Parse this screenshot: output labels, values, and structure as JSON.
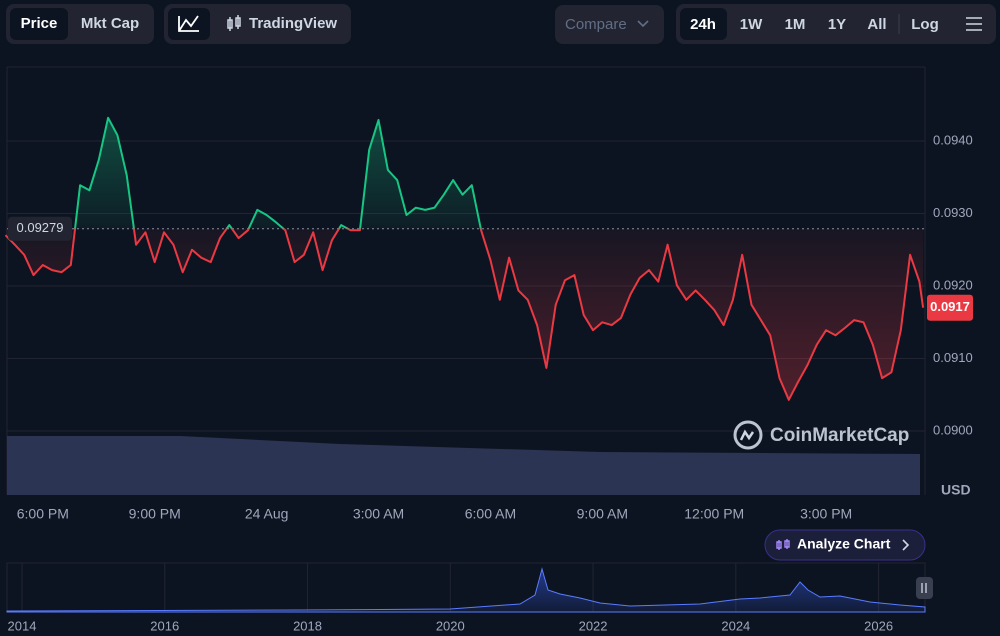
{
  "toolbar": {
    "views": [
      "Price",
      "Mkt Cap"
    ],
    "tradingview": "TradingView",
    "compare": "Compare",
    "ranges": [
      "24h",
      "1W",
      "1M",
      "1Y",
      "All"
    ],
    "log": "Log"
  },
  "chart_data": {
    "type": "line",
    "x": [
      17.0,
      17.25,
      17.5,
      17.75,
      18.0,
      18.25,
      18.5,
      18.75,
      19.0,
      19.25,
      19.5,
      19.75,
      20.0,
      20.25,
      20.5,
      20.75,
      21.0,
      21.25,
      21.5,
      21.75,
      22.0,
      22.25,
      22.5,
      22.75,
      23.0,
      23.25,
      23.5,
      23.75,
      24.0,
      24.25,
      24.5,
      24.75,
      25.0,
      25.25,
      25.5,
      25.75,
      26.0,
      26.25,
      26.5,
      26.75,
      27.0,
      27.25,
      27.5,
      27.75,
      28.0,
      28.25,
      28.5,
      28.75,
      29.0,
      29.25,
      29.5,
      29.75,
      30.0,
      30.25,
      30.5,
      30.75,
      31.0,
      31.25,
      31.5,
      31.75,
      32.0,
      32.25,
      32.5,
      32.75,
      33.0,
      33.25,
      33.5,
      33.75,
      34.0,
      34.25,
      34.5,
      34.75,
      35.0,
      35.25,
      35.5,
      35.75,
      36.0,
      36.25,
      36.5,
      36.75,
      37.0,
      37.25,
      37.5,
      37.75,
      38.0,
      38.25,
      38.5,
      38.75,
      39.0,
      39.25,
      39.5,
      39.75,
      40.0,
      40.25,
      40.5,
      40.75,
      41.0,
      41.25,
      41.5,
      41.6
    ],
    "values": [
      0.0927,
      0.09257,
      0.09243,
      0.09215,
      0.09229,
      0.09222,
      0.09219,
      0.09229,
      0.09339,
      0.09332,
      0.09374,
      0.09432,
      0.09408,
      0.09353,
      0.09257,
      0.09274,
      0.09233,
      0.09274,
      0.09257,
      0.09219,
      0.0925,
      0.09239,
      0.09233,
      0.09266,
      0.09284,
      0.09266,
      0.09277,
      0.09305,
      0.09298,
      0.09288,
      0.09277,
      0.09233,
      0.09243,
      0.09274,
      0.09222,
      0.09263,
      0.09284,
      0.09277,
      0.09277,
      0.09388,
      0.09429,
      0.0936,
      0.09346,
      0.09298,
      0.09308,
      0.09305,
      0.09308,
      0.09326,
      0.09346,
      0.09326,
      0.09339,
      0.09277,
      0.09236,
      0.09181,
      0.09239,
      0.09194,
      0.09181,
      0.09146,
      0.09087,
      0.09174,
      0.09208,
      0.09215,
      0.0916,
      0.09139,
      0.0915,
      0.09146,
      0.09156,
      0.09188,
      0.09211,
      0.09222,
      0.09206,
      0.09257,
      0.09201,
      0.09181,
      0.09194,
      0.09181,
      0.09167,
      0.09146,
      0.09181,
      0.09243,
      0.09174,
      0.09153,
      0.09132,
      0.09073,
      0.09043,
      0.09068,
      0.09091,
      0.09119,
      0.09139,
      0.09132,
      0.09142,
      0.09153,
      0.0915,
      0.09119,
      0.09073,
      0.09081,
      0.09139,
      0.09243,
      0.09206,
      0.0917
    ],
    "up_color": "#16c784",
    "down_color": "#ea3943",
    "baseline": 0.09279,
    "current_price": 0.0917,
    "xlim": [
      17.04,
      41.65
    ],
    "ylim": [
      0.09,
      0.095
    ],
    "xticks": [
      {
        "value": 18,
        "label": "6:00 PM"
      },
      {
        "value": 21,
        "label": "9:00 PM"
      },
      {
        "value": 24,
        "label": "24 Aug"
      },
      {
        "value": 27,
        "label": "3:00 AM"
      },
      {
        "value": 30,
        "label": "6:00 AM"
      },
      {
        "value": 33,
        "label": "9:00 AM"
      },
      {
        "value": 36,
        "label": "12:00 PM"
      },
      {
        "value": 39,
        "label": "3:00 PM"
      }
    ],
    "yticks": [
      {
        "value": 0.09,
        "label": "0.0900"
      },
      {
        "value": 0.091,
        "label": "0.0910"
      },
      {
        "value": 0.092,
        "label": "0.0920"
      },
      {
        "value": 0.093,
        "label": "0.0930"
      },
      {
        "value": 0.094,
        "label": "0.0940"
      }
    ],
    "grid": true,
    "y_unit": "USD",
    "watermark": "CoinMarketCap"
  },
  "analyze_button": "Analyze Chart",
  "navigator": {
    "xlim": [
      2013.79,
      2026.65
    ],
    "xticks": [
      2014,
      2016,
      2018,
      2020,
      2022,
      2024,
      2026
    ]
  }
}
